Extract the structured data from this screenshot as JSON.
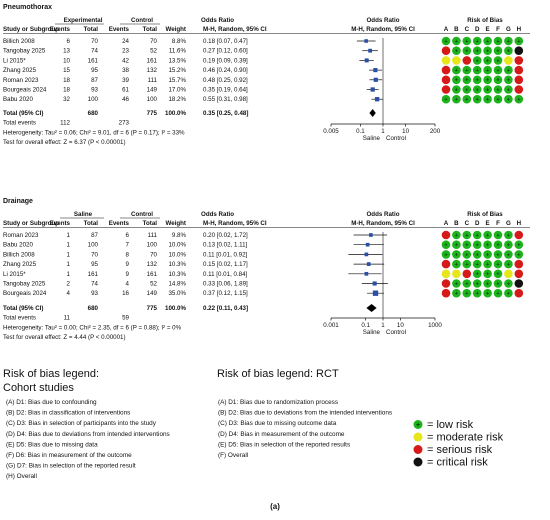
{
  "figure_label": "(a)",
  "pneumothorax": {
    "title": "Pneumothorax",
    "group_headers": {
      "exp": "Experimental",
      "ctl": "Control",
      "or1": "Odds Ratio",
      "or2": "Odds Ratio",
      "rob": "Risk of Bias"
    },
    "col_headers": {
      "study": "Study or Subgroup",
      "events": "Events",
      "total": "Total",
      "events2": "Events",
      "total2": "Total",
      "weight": "Weight",
      "method": "M-H, Random, 95% CI",
      "method2": "M-H, Random, 95% CI",
      "letters": [
        "A",
        "B",
        "C",
        "D",
        "E",
        "F",
        "G",
        "H"
      ]
    },
    "studies": [
      {
        "study": "Billich 2008",
        "e1": "6",
        "t1": "70",
        "e2": "24",
        "t2": "70",
        "weight": "8.8%",
        "ci": "0.18 [0.07, 0.47]",
        "or": 0.18,
        "lo": 0.07,
        "hi": 0.47,
        "w": 8.8,
        "rob": [
          "G",
          "G",
          "G",
          "G",
          "G",
          "G",
          "G",
          "G"
        ]
      },
      {
        "study": "Tangobay 2025",
        "e1": "13",
        "t1": "74",
        "e2": "23",
        "t2": "52",
        "weight": "11.6%",
        "ci": "0.27 [0.12, 0.60]",
        "or": 0.27,
        "lo": 0.12,
        "hi": 0.6,
        "w": 11.6,
        "rob": [
          "R",
          "G",
          "G",
          "G",
          "G",
          "G",
          "G",
          "K"
        ]
      },
      {
        "study": "Li 2015*",
        "e1": "10",
        "t1": "161",
        "e2": "42",
        "t2": "161",
        "weight": "13.5%",
        "ci": "0.19 [0.09, 0.39]",
        "or": 0.19,
        "lo": 0.09,
        "hi": 0.39,
        "w": 13.5,
        "rob": [
          "Y",
          "Y",
          "R",
          "G",
          "G",
          "G",
          "Y",
          "R"
        ]
      },
      {
        "study": "Zhang 2025",
        "e1": "15",
        "t1": "95",
        "e2": "38",
        "t2": "132",
        "weight": "15.2%",
        "ci": "0.46 [0.24, 0.90]",
        "or": 0.46,
        "lo": 0.24,
        "hi": 0.9,
        "w": 15.2,
        "rob": [
          "R",
          "G",
          "G",
          "G",
          "G",
          "G",
          "G",
          "R"
        ]
      },
      {
        "study": "Roman 2023",
        "e1": "18",
        "t1": "87",
        "e2": "39",
        "t2": "111",
        "weight": "15.7%",
        "ci": "0.48 [0.25, 0.92]",
        "or": 0.48,
        "lo": 0.25,
        "hi": 0.92,
        "w": 15.7,
        "rob": [
          "R",
          "G",
          "G",
          "G",
          "G",
          "G",
          "G",
          "R"
        ]
      },
      {
        "study": "Bourgeais 2024",
        "e1": "18",
        "t1": "93",
        "e2": "61",
        "t2": "149",
        "weight": "17.0%",
        "ci": "0.35 [0.19, 0.64]",
        "or": 0.35,
        "lo": 0.19,
        "hi": 0.64,
        "w": 17.0,
        "rob": [
          "R",
          "G",
          "G",
          "G",
          "G",
          "G",
          "G",
          "R"
        ]
      },
      {
        "study": "Babu 2020",
        "e1": "32",
        "t1": "100",
        "e2": "46",
        "t2": "100",
        "weight": "18.2%",
        "ci": "0.55 [0.31, 0.98]",
        "or": 0.55,
        "lo": 0.31,
        "hi": 0.98,
        "w": 18.2,
        "rob": [
          "G",
          "G",
          "G",
          "G",
          "G",
          "G",
          "G",
          "G"
        ]
      }
    ],
    "total": {
      "label": "Total (95% CI)",
      "t1": "680",
      "t2": "775",
      "weight": "100.0%",
      "ci": "0.35 [0.25, 0.48]",
      "or": 0.35,
      "lo": 0.25,
      "hi": 0.48
    },
    "total_events": {
      "label": "Total events",
      "e1": "112",
      "e2": "273"
    },
    "heterogeneity": "Heterogeneity: Tau² = 0.06; Chi² = 9.01, df = 6 (P = 0.17); I² = 33%",
    "overall_test": "Test for overall effect: Z = 6.37 (P < 0.00001)",
    "axis_ticks": [
      {
        "v": 0.005,
        "label": "0.005"
      },
      {
        "v": 0.1,
        "label": "0.1"
      },
      {
        "v": 1,
        "label": "1"
      },
      {
        "v": 10,
        "label": "10"
      },
      {
        "v": 200,
        "label": "200"
      }
    ],
    "axis_left": "Saline",
    "axis_right": "Control"
  },
  "drainage": {
    "title": "Drainage",
    "group_headers": {
      "exp": "Saline",
      "ctl": "Control",
      "or1": "Odds Ratio",
      "or2": "Odds Ratio",
      "rob": "Risk of Bias"
    },
    "col_headers": {
      "study": "Study or Subgroup",
      "events": "Events",
      "total": "Total",
      "events2": "Events",
      "total2": "Total",
      "weight": "Weight",
      "method": "M-H, Random, 95% CI",
      "method2": "M-H, Random, 95% CI",
      "letters": [
        "A",
        "B",
        "C",
        "D",
        "E",
        "F",
        "G",
        "H"
      ]
    },
    "studies": [
      {
        "study": "Roman 2023",
        "e1": "1",
        "t1": "87",
        "e2": "6",
        "t2": "111",
        "weight": "9.8%",
        "ci": "0.20 [0.02, 1.72]",
        "or": 0.2,
        "lo": 0.02,
        "hi": 1.72,
        "w": 9.8,
        "rob": [
          "R",
          "G",
          "G",
          "G",
          "G",
          "G",
          "G",
          "R"
        ]
      },
      {
        "study": "Babu 2020",
        "e1": "1",
        "t1": "100",
        "e2": "7",
        "t2": "100",
        "weight": "10.0%",
        "ci": "0.13 [0.02, 1.11]",
        "or": 0.13,
        "lo": 0.02,
        "hi": 1.11,
        "w": 10.0,
        "rob": [
          "G",
          "G",
          "G",
          "G",
          "G",
          "G",
          "G",
          "G"
        ]
      },
      {
        "study": "Billich 2008",
        "e1": "1",
        "t1": "70",
        "e2": "8",
        "t2": "70",
        "weight": "10.0%",
        "ci": "0.11 [0.01, 0.92]",
        "or": 0.11,
        "lo": 0.01,
        "hi": 0.92,
        "w": 10.0,
        "rob": [
          "G",
          "G",
          "G",
          "G",
          "G",
          "G",
          "G",
          "G"
        ]
      },
      {
        "study": "Zhang 2025",
        "e1": "1",
        "t1": "95",
        "e2": "9",
        "t2": "132",
        "weight": "10.3%",
        "ci": "0.15 [0.02, 1.17]",
        "or": 0.15,
        "lo": 0.02,
        "hi": 1.17,
        "w": 10.3,
        "rob": [
          "R",
          "G",
          "G",
          "G",
          "G",
          "G",
          "G",
          "R"
        ]
      },
      {
        "study": "Li 2015*",
        "e1": "1",
        "t1": "161",
        "e2": "9",
        "t2": "161",
        "weight": "10.3%",
        "ci": "0.11 [0.01, 0.84]",
        "or": 0.11,
        "lo": 0.01,
        "hi": 0.84,
        "w": 10.3,
        "rob": [
          "Y",
          "Y",
          "R",
          "G",
          "G",
          "G",
          "Y",
          "R"
        ]
      },
      {
        "study": "Tangobay 2025",
        "e1": "2",
        "t1": "74",
        "e2": "4",
        "t2": "52",
        "weight": "14.8%",
        "ci": "0.33 [0.06, 1.89]",
        "or": 0.33,
        "lo": 0.06,
        "hi": 1.89,
        "w": 14.8,
        "rob": [
          "R",
          "G",
          "G",
          "G",
          "G",
          "G",
          "G",
          "K"
        ]
      },
      {
        "study": "Bourgeais 2024",
        "e1": "4",
        "t1": "93",
        "e2": "16",
        "t2": "149",
        "weight": "35.0%",
        "ci": "0.37 [0.12, 1.15]",
        "or": 0.37,
        "lo": 0.12,
        "hi": 1.15,
        "w": 35.0,
        "rob": [
          "R",
          "G",
          "G",
          "G",
          "G",
          "G",
          "G",
          "R"
        ]
      }
    ],
    "total": {
      "label": "Total (95% CI)",
      "t1": "680",
      "t2": "775",
      "weight": "100.0%",
      "ci": "0.22 [0.11, 0.43]",
      "or": 0.22,
      "lo": 0.11,
      "hi": 0.43
    },
    "total_events": {
      "label": "Total events",
      "e1": "11",
      "e2": "59"
    },
    "heterogeneity": "Heterogeneity: Tau² = 0.00; Chi² = 2.35, df = 6 (P = 0.88); I² = 0%",
    "overall_test": "Test for overall effect: Z = 4.44 (P < 0.00001)",
    "axis_ticks": [
      {
        "v": 0.001,
        "label": "0.001"
      },
      {
        "v": 0.1,
        "label": "0.1"
      },
      {
        "v": 1,
        "label": "1"
      },
      {
        "v": 10,
        "label": "10"
      },
      {
        "v": 1000,
        "label": "1000"
      }
    ],
    "axis_left": "Saline",
    "axis_right": "Control"
  },
  "legend_cohort": {
    "title_line1": "Risk of bias legend:",
    "title_line2": "Cohort studies",
    "items": [
      "(A) D1: Bias due to confounding",
      "(B) D2: Bias in classification of interventions",
      "(C) D3: Bias in selection of participants into the study",
      "(D) D4: Bias due to deviations from intended interventions",
      "(E) D5: Bias due to missing data",
      "(F) D6: Bias in measurement of the outcome",
      "(G) D7: Bias in selection of the reported result",
      "(H) Overall"
    ]
  },
  "legend_rct": {
    "title": "Risk of bias legend: RCT",
    "items": [
      "(A) D1: Bias due to randomization process",
      "(B) D2: Bias due to deviations from the intended interventions",
      "(C) D3: Bias due to missing outcome data",
      "(D) D4: Bias in measurement of the outcome",
      "(E) D5: Bias in selection of the reported results",
      "(F) Overall"
    ]
  },
  "legend_key": [
    {
      "code": "G",
      "color": "#1db31d",
      "label": "= low risk",
      "symbol": "+"
    },
    {
      "code": "Y",
      "color": "#e6e61a",
      "label": "= moderate risk",
      "symbol": ""
    },
    {
      "code": "R",
      "color": "#d61a1a",
      "label": "= serious risk",
      "symbol": ""
    },
    {
      "code": "K",
      "color": "#111111",
      "label": "= critical risk",
      "symbol": ""
    }
  ],
  "colors": {
    "low": "#1db31d",
    "moderate": "#e6e61a",
    "serious": "#d61a1a",
    "critical": "#111111",
    "ci_square": "#2a4fa8",
    "diamond": "#000000"
  }
}
